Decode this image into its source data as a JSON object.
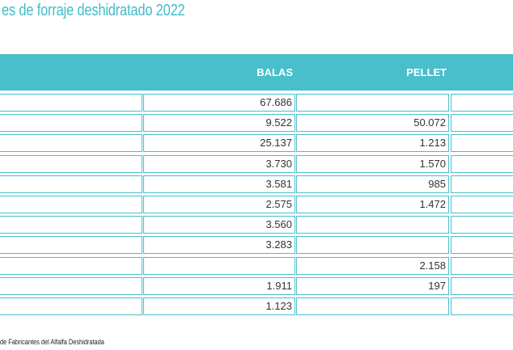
{
  "title": "es de forraje deshidratado 2022",
  "header": {
    "balas": "BALAS",
    "pellet": "PELLET"
  },
  "rows": [
    {
      "balas": "67.686",
      "pellet": ""
    },
    {
      "balas": "9.522",
      "pellet": "50.072"
    },
    {
      "balas": "25.137",
      "pellet": "1.213"
    },
    {
      "balas": "3.730",
      "pellet": "1.570"
    },
    {
      "balas": "3.581",
      "pellet": "985"
    },
    {
      "balas": "2.575",
      "pellet": "1.472"
    },
    {
      "balas": "3.560",
      "pellet": ""
    },
    {
      "balas": "3.283",
      "pellet": ""
    },
    {
      "balas": "",
      "pellet": "2.158"
    },
    {
      "balas": "1.911",
      "pellet": "197"
    },
    {
      "balas": "1.123",
      "pellet": ""
    }
  ],
  "source": "de Fabricantes del Alfalfa Deshidratada",
  "colors": {
    "accent": "#48bfcb",
    "title": "#3fbcc9"
  }
}
